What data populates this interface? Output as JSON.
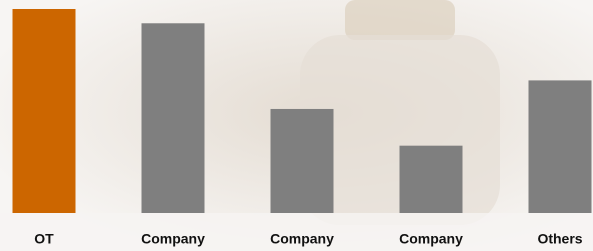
{
  "chart_data": {
    "type": "bar",
    "categories": [
      "OT",
      "Company",
      "Company",
      "Company",
      "Others"
    ],
    "values": [
      100,
      93,
      51,
      33,
      65
    ],
    "colors": [
      "#cc6600",
      "#7f7f7f",
      "#7f7f7f",
      "#7f7f7f",
      "#7f7f7f"
    ],
    "ylim": [
      0,
      100
    ]
  }
}
